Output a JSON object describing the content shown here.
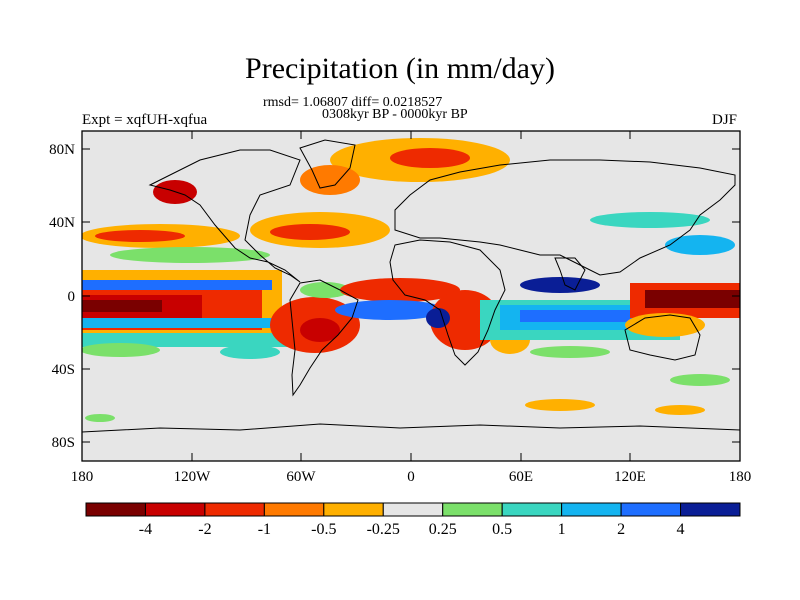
{
  "title": "Precipitation (in mm/day)",
  "subtitle_stats": "rmsd= 1.06807 diff= 0.0218527",
  "subtitle_period": "0308kyr BP - 0000kyr BP",
  "experiment": "Expt = xqfUH-xqfua",
  "season": "DJF",
  "lat_ticks": [
    "80N",
    "40N",
    "0",
    "40S",
    "80S"
  ],
  "lon_ticks": [
    "180",
    "120W",
    "60W",
    "0",
    "60E",
    "120E",
    "180"
  ],
  "colorbar": {
    "colors": [
      "#7a0000",
      "#c80000",
      "#ee2a00",
      "#ff7a00",
      "#ffb000",
      "#e6e6e6",
      "#7be06a",
      "#3ad6c0",
      "#14b4f0",
      "#1e6eff",
      "#0a1e96"
    ],
    "labels": [
      "-4",
      "-2",
      "-1",
      "-0.5",
      "-0.25",
      "0.25",
      "0.5",
      "1",
      "2",
      "4"
    ]
  },
  "colors": {
    "land_neutral": "#e6e6e6",
    "coastline": "#000000"
  }
}
